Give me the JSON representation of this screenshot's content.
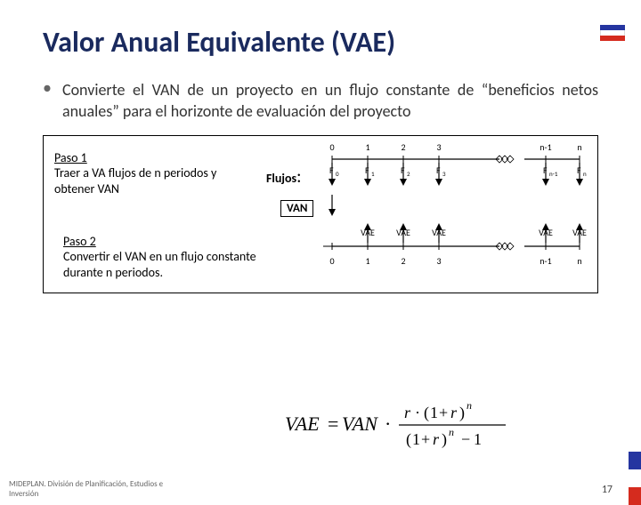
{
  "title": "Valor Anual Equivalente  (VAE)",
  "bullet": {
    "text": "Convierte el VAN de un proyecto en un flujo constante de “beneficios netos anuales” para el horizonte de evaluación del proyecto"
  },
  "paso1": {
    "head": "Paso 1",
    "body": "Traer a VA flujos de n periodos y obtener VAN"
  },
  "paso2": {
    "head": "Paso 2",
    "body": "Convertir el VAN en un flujo constante durante n periodos."
  },
  "flujos_label": "Flujos",
  "van_label": "VAN",
  "timeline": {
    "ticks": [
      "0",
      "1",
      "2",
      "3",
      "n-1",
      "n"
    ],
    "bottom_ticks": [
      "0",
      "1",
      "2",
      "3",
      "n-1",
      "n"
    ],
    "flows": [
      "F",
      "F",
      "F",
      "F",
      "F",
      "F"
    ],
    "flow_sub": [
      "0",
      "1",
      "2",
      "3",
      "n-1",
      "n"
    ],
    "vae": [
      "VAE",
      "VAE",
      "VAE",
      "VAE",
      "VAE"
    ]
  },
  "formula": {
    "lhs": "VAE",
    "eq": "=",
    "van": "VAN",
    "dot": "·",
    "r": "r",
    "one": "1",
    "plus": "+",
    "n": "n",
    "minus": "−"
  },
  "footer": "MIDEPLAN. División de Planificación, Estudios e Inversión",
  "page": "17",
  "colors": {
    "title": "#1a2a5e",
    "flag_blue": "#2535a0",
    "flag_red": "#d52b1e"
  }
}
